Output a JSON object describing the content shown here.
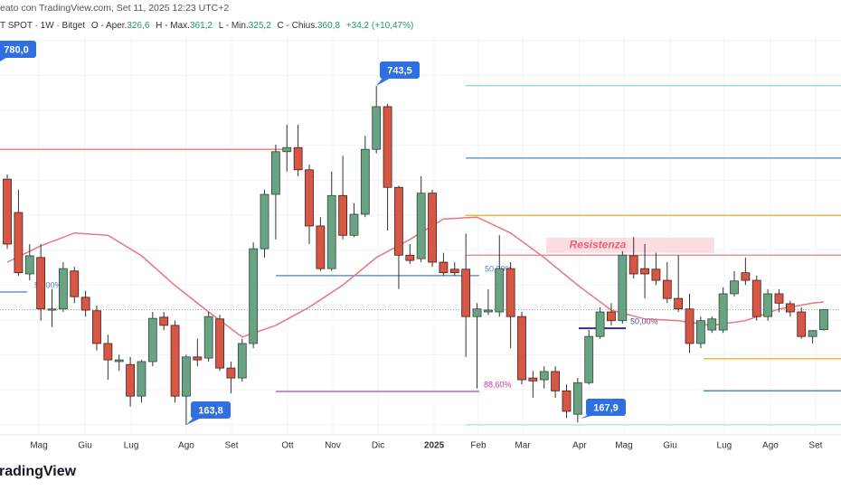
{
  "header": {
    "source": "eato con TradingView.com, Set 11, 2025 12:23 UTC+2",
    "symbol": "T SPOT · 1W · Bitget",
    "ohlc": [
      {
        "label": "O - Aper.",
        "value": "326,6"
      },
      {
        "label": "H - Max.",
        "value": "361,2"
      },
      {
        "label": "L - Min.",
        "value": "325,2"
      },
      {
        "label": "C - Chius.",
        "value": "360,8"
      }
    ],
    "change": "+34,2 (+10,47%)"
  },
  "logo": "radingView",
  "chart_data": {
    "type": "candlestick",
    "up_color": "#6aa383",
    "down_color": "#d65745",
    "open": [
      584,
      527,
      422,
      450,
      360,
      362,
      427,
      382,
      359,
      303,
      272,
      267,
      213,
      272,
      348,
      334,
      213,
      280,
      278,
      345,
      261,
      244,
      303,
      465,
      558,
      631,
      638,
      600,
      504,
      431,
      556,
      488,
      524,
      635,
      708,
      570,
      454,
      448,
      560,
      442,
      430,
      430,
      349,
      357,
      357,
      431,
      349,
      244,
      241,
      255,
      222,
      182,
      236,
      315,
      357,
      342,
      453,
      431,
      430,
      411,
      380,
      362,
      303,
      326,
      326,
      388,
      424,
      411,
      349,
      388,
      371,
      357,
      315,
      326.6
    ],
    "high": [
      592,
      566,
      473,
      473,
      396,
      442,
      434,
      393,
      368,
      318,
      284,
      280,
      275,
      357,
      357,
      342,
      284,
      311,
      357,
      352,
      272,
      311,
      476,
      566,
      643,
      677,
      677,
      609,
      519,
      597,
      624,
      543,
      658,
      743.5,
      713,
      573,
      473,
      589,
      566,
      458,
      442,
      491,
      372,
      396,
      488,
      442,
      357,
      256,
      264,
      264,
      233,
      244,
      326,
      365,
      372,
      461,
      485,
      473,
      458,
      442,
      454,
      388,
      349,
      349,
      399,
      427,
      450,
      419,
      396,
      396,
      376,
      365,
      326,
      361.2
    ],
    "low": [
      465,
      419,
      411,
      342,
      331,
      357,
      372,
      349,
      291,
      241,
      256,
      195,
      202,
      264,
      326,
      202,
      163.8,
      264,
      272,
      256,
      218,
      238,
      295,
      450,
      481,
      597,
      589,
      473,
      427,
      427,
      481,
      485,
      519,
      628,
      496,
      396,
      439,
      442,
      434,
      419,
      419,
      280,
      226,
      352,
      349,
      295,
      233,
      210,
      226,
      210,
      176,
      167.9,
      233,
      311,
      334,
      337,
      414,
      380,
      403,
      372,
      357,
      287,
      295,
      321,
      321,
      383,
      403,
      342,
      342,
      357,
      349,
      311,
      303,
      325.2
    ],
    "close": [
      473,
      424,
      453,
      362,
      362,
      431,
      383,
      360,
      303,
      275,
      275,
      213,
      272,
      346,
      334,
      213,
      280,
      275,
      349,
      261,
      244,
      303,
      465,
      558,
      631,
      638,
      600,
      504,
      431,
      556,
      488,
      524,
      635,
      708,
      570,
      454,
      445,
      560,
      442,
      424,
      424,
      349,
      362,
      360,
      431,
      349,
      241,
      239,
      255,
      222,
      187,
      236,
      315,
      357,
      342,
      454,
      422,
      422,
      411,
      380,
      362,
      303,
      342,
      345,
      388,
      410,
      411,
      349,
      388,
      372,
      357,
      315,
      325,
      360.8
    ],
    "ma": {
      "color": "#e8777f",
      "x": [
        0,
        3,
        6,
        9,
        12,
        15,
        18,
        21,
        24,
        27,
        30,
        33,
        36,
        39,
        42,
        45,
        48,
        51,
        54,
        57,
        60,
        63,
        66,
        69,
        72,
        73
      ],
      "values": [
        442,
        470,
        492,
        488,
        453,
        402,
        357,
        314,
        334,
        365,
        403,
        450,
        481,
        516,
        519,
        492,
        450,
        403,
        360,
        345,
        342,
        334,
        342,
        362,
        372,
        374
      ]
    },
    "levels": [
      {
        "value": 635,
        "color": "#f07b7b"
      },
      {
        "value": 454,
        "color": "#f07b7b"
      },
      {
        "value": 744,
        "color": "#8fdcd4"
      },
      {
        "value": 620,
        "color": "#3f8fbf"
      },
      {
        "value": 522,
        "color": "#f5a623"
      },
      {
        "value": 419,
        "color": "#4a7fc9"
      },
      {
        "value": 221,
        "color": "#b04a9c"
      },
      {
        "value": 391,
        "color": "#4a7fc9"
      },
      {
        "value": 329,
        "color": "#3a2f7a"
      },
      {
        "value": 277,
        "color": "#f5a623"
      },
      {
        "value": 222,
        "color": "#4a7fc9"
      },
      {
        "value": 164,
        "color": "#a6e3da"
      }
    ],
    "zone": {
      "label": "Resistenza",
      "from": 458,
      "to": 484
    },
    "fib_labels": [
      {
        "text": "50,00%",
        "color": "#4a7fc9"
      },
      {
        "text": "50,00%",
        "color": "#4a7fc9"
      },
      {
        "text": "88,60%",
        "color": "#c0399a"
      },
      {
        "text": "50,00%",
        "color": "#6a3fa0"
      }
    ],
    "callouts": [
      {
        "text": "780,0"
      },
      {
        "text": "743,5"
      },
      {
        "text": "163,8"
      },
      {
        "text": "167,9"
      }
    ],
    "xlim": [
      -0.65,
      74.54
    ],
    "ylim": [
      148.3,
      890.4
    ],
    "xticks": [
      {
        "value": 2.83,
        "label": "Mag"
      },
      {
        "value": 6.95,
        "label": "Giu"
      },
      {
        "value": 11.08,
        "label": "Lug"
      },
      {
        "value": 16.0,
        "label": "Ago"
      },
      {
        "value": 20.05,
        "label": "Set"
      },
      {
        "value": 25.06,
        "label": "Ott"
      },
      {
        "value": 29.1,
        "label": "Nov"
      },
      {
        "value": 33.15,
        "label": "Dic"
      },
      {
        "value": 38.16,
        "label": "2025"
      },
      {
        "value": 42.12,
        "label": "Feb"
      },
      {
        "value": 46.08,
        "label": "Mar"
      },
      {
        "value": 51.17,
        "label": "Apr"
      },
      {
        "value": 55.13,
        "label": "Mag"
      },
      {
        "value": 59.26,
        "label": "Giu"
      },
      {
        "value": 64.1,
        "label": "Lug"
      },
      {
        "value": 68.23,
        "label": "Ago"
      },
      {
        "value": 72.27,
        "label": "Set"
      }
    ]
  }
}
